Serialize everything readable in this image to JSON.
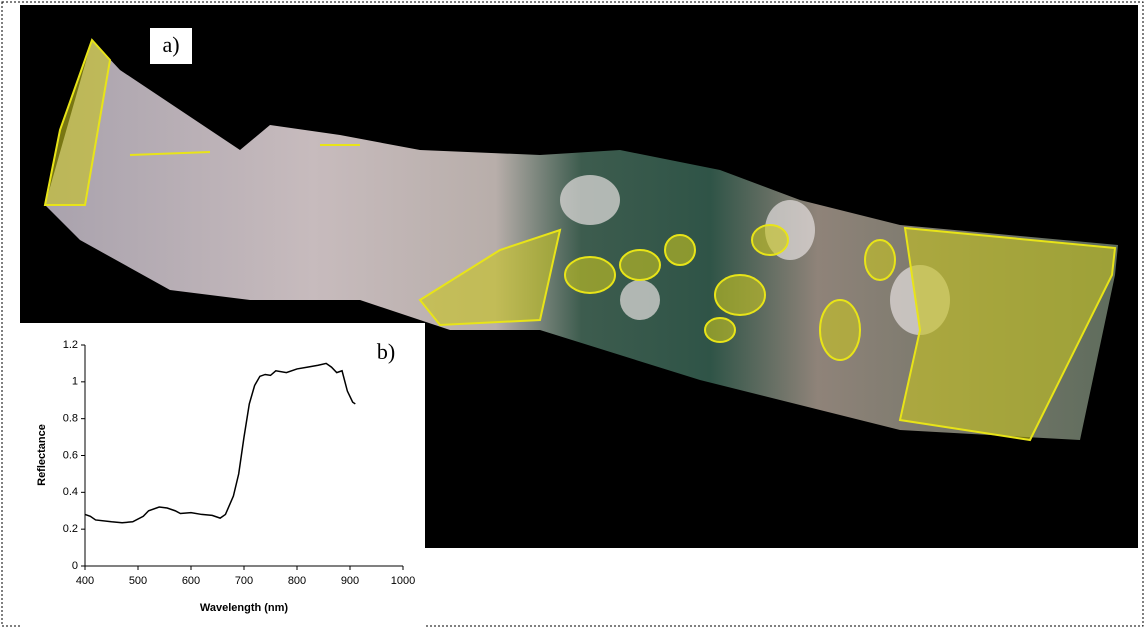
{
  "image_label": "a)",
  "chart_data": {
    "type": "line",
    "annotation": "b)",
    "xlabel": "Wavelength (nm)",
    "ylabel": "Reflectance",
    "x": [
      400,
      410,
      420,
      450,
      470,
      490,
      510,
      520,
      540,
      555,
      570,
      580,
      600,
      620,
      640,
      655,
      665,
      680,
      690,
      700,
      710,
      720,
      730,
      740,
      750,
      760,
      780,
      800,
      820,
      840,
      855,
      865,
      875,
      885,
      895,
      905,
      910
    ],
    "values": [
      0.28,
      0.27,
      0.25,
      0.24,
      0.235,
      0.24,
      0.27,
      0.3,
      0.32,
      0.315,
      0.3,
      0.285,
      0.29,
      0.28,
      0.275,
      0.26,
      0.28,
      0.38,
      0.5,
      0.7,
      0.88,
      0.98,
      1.03,
      1.04,
      1.035,
      1.06,
      1.05,
      1.07,
      1.08,
      1.09,
      1.1,
      1.08,
      1.05,
      1.06,
      0.95,
      0.89,
      0.88
    ],
    "color": "#000000",
    "xlim": [
      400,
      1000
    ],
    "xticks": [
      400,
      500,
      600,
      700,
      800,
      900,
      1000
    ],
    "ylim": [
      0,
      1.2
    ],
    "yticks": [
      0,
      0.2,
      0.4,
      0.6,
      0.8,
      1,
      1.2
    ]
  }
}
